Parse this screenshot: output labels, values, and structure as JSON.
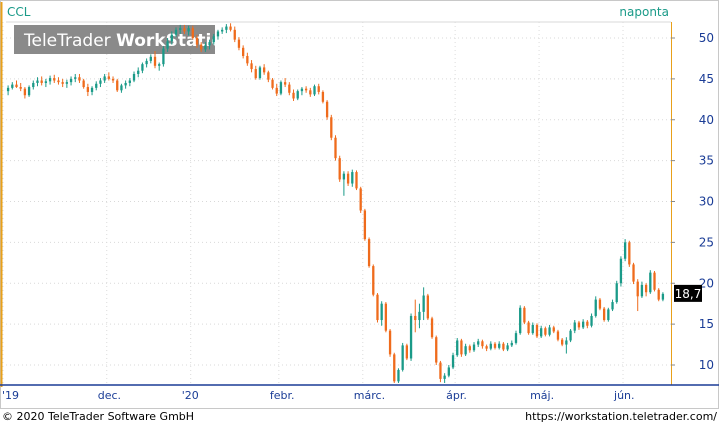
{
  "chart_data": {
    "type": "candlestick",
    "symbol": "CCL",
    "interval_label": "naponta",
    "watermark": {
      "part1": "TeleTrader ",
      "part2": "WorkStation"
    },
    "last_price_label": "18,7",
    "ylim": [
      7,
      53
    ],
    "yticks": [
      10,
      15,
      20,
      25,
      30,
      35,
      40,
      45,
      50
    ],
    "xticks": [
      "'19",
      "dec.",
      "'20",
      "febr.",
      "márc.",
      "ápr.",
      "máj.",
      "jún."
    ],
    "grid": true,
    "colors": {
      "up": "#1a9a88",
      "down": "#ef6b1c",
      "accent": "#e8a01a",
      "axis": "#1a3c96",
      "label_bg": "#000000"
    },
    "footer": {
      "left": "© 2020 TeleTrader Software GmbH",
      "right": "https://workstation.teletrader.com/"
    },
    "candles": [
      [
        43.5,
        44.2,
        43.0,
        43.9
      ],
      [
        43.9,
        44.6,
        43.7,
        44.3
      ],
      [
        44.3,
        44.8,
        43.9,
        44.0
      ],
      [
        44.0,
        44.5,
        43.5,
        43.8
      ],
      [
        43.8,
        44.0,
        42.6,
        43.0
      ],
      [
        43.0,
        44.2,
        42.8,
        44.0
      ],
      [
        44.0,
        44.8,
        43.7,
        44.5
      ],
      [
        44.5,
        45.2,
        44.1,
        44.8
      ],
      [
        44.8,
        45.3,
        44.2,
        44.5
      ],
      [
        44.5,
        45.0,
        44.0,
        44.7
      ],
      [
        44.7,
        45.4,
        44.3,
        45.1
      ],
      [
        45.1,
        45.5,
        44.5,
        44.8
      ],
      [
        44.8,
        45.2,
        44.3,
        44.6
      ],
      [
        44.6,
        45.0,
        44.0,
        44.4
      ],
      [
        44.4,
        44.9,
        43.9,
        44.6
      ],
      [
        44.6,
        45.3,
        44.2,
        45.0
      ],
      [
        45.0,
        45.6,
        44.6,
        45.2
      ],
      [
        45.2,
        45.6,
        44.5,
        44.8
      ],
      [
        44.8,
        45.0,
        43.8,
        44.0
      ],
      [
        44.0,
        44.4,
        42.9,
        43.4
      ],
      [
        43.4,
        44.1,
        43.0,
        43.9
      ],
      [
        43.9,
        44.7,
        43.6,
        44.4
      ],
      [
        44.4,
        45.1,
        44.0,
        44.8
      ],
      [
        44.8,
        45.6,
        44.5,
        45.3
      ],
      [
        45.3,
        45.8,
        44.8,
        45.0
      ],
      [
        45.0,
        45.3,
        44.5,
        44.8
      ],
      [
        44.8,
        45.0,
        43.4,
        43.6
      ],
      [
        43.6,
        44.4,
        43.3,
        44.2
      ],
      [
        44.2,
        44.8,
        43.8,
        44.5
      ],
      [
        44.5,
        45.1,
        44.1,
        44.8
      ],
      [
        44.8,
        45.9,
        44.6,
        45.6
      ],
      [
        45.6,
        46.4,
        45.2,
        46.0
      ],
      [
        46.0,
        47.0,
        45.7,
        46.8
      ],
      [
        46.8,
        47.5,
        46.4,
        47.2
      ],
      [
        47.2,
        48.0,
        46.9,
        47.7
      ],
      [
        47.7,
        48.4,
        46.3,
        46.6
      ],
      [
        46.6,
        47.0,
        46.0,
        46.8
      ],
      [
        46.8,
        49.0,
        46.5,
        48.7
      ],
      [
        48.7,
        50.0,
        48.3,
        49.6
      ],
      [
        49.6,
        50.8,
        49.2,
        50.4
      ],
      [
        50.4,
        51.3,
        50.1,
        51.0
      ],
      [
        51.0,
        51.6,
        50.5,
        51.2
      ],
      [
        51.2,
        51.6,
        50.5,
        50.8
      ],
      [
        50.8,
        51.5,
        50.3,
        51.2
      ],
      [
        51.2,
        51.5,
        49.8,
        50.0
      ],
      [
        50.0,
        50.4,
        48.8,
        49.2
      ],
      [
        49.2,
        49.5,
        48.3,
        48.6
      ],
      [
        48.6,
        49.5,
        48.3,
        49.1
      ],
      [
        49.1,
        49.8,
        48.6,
        49.5
      ],
      [
        49.5,
        50.5,
        49.2,
        50.2
      ],
      [
        50.2,
        51.0,
        49.8,
        50.8
      ],
      [
        50.8,
        51.3,
        50.5,
        51.0
      ],
      [
        51.0,
        51.7,
        50.6,
        51.4
      ],
      [
        51.4,
        51.8,
        50.8,
        51.0
      ],
      [
        51.0,
        51.4,
        49.5,
        49.8
      ],
      [
        49.8,
        50.1,
        48.5,
        48.8
      ],
      [
        48.8,
        49.1,
        47.5,
        47.8
      ],
      [
        47.8,
        48.2,
        46.6,
        46.9
      ],
      [
        46.9,
        47.3,
        45.8,
        46.2
      ],
      [
        46.2,
        46.6,
        44.9,
        45.1
      ],
      [
        45.1,
        46.6,
        44.9,
        46.4
      ],
      [
        46.4,
        46.8,
        45.5,
        45.8
      ],
      [
        45.8,
        46.0,
        44.6,
        44.9
      ],
      [
        44.9,
        45.1,
        43.7,
        43.9
      ],
      [
        43.9,
        44.4,
        42.9,
        43.2
      ],
      [
        43.2,
        44.8,
        43.0,
        44.6
      ],
      [
        44.6,
        45.1,
        44.0,
        44.3
      ],
      [
        44.3,
        44.6,
        43.0,
        43.3
      ],
      [
        43.3,
        43.7,
        42.3,
        42.6
      ],
      [
        42.6,
        43.7,
        42.4,
        43.5
      ],
      [
        43.5,
        44.0,
        43.0,
        43.8
      ],
      [
        43.8,
        44.1,
        43.3,
        43.6
      ],
      [
        43.6,
        43.9,
        42.8,
        43.1
      ],
      [
        43.1,
        44.3,
        42.9,
        44.1
      ],
      [
        44.1,
        44.4,
        43.1,
        43.4
      ],
      [
        43.4,
        43.6,
        42.0,
        42.2
      ],
      [
        42.2,
        42.4,
        40.0,
        40.3
      ],
      [
        40.3,
        40.6,
        37.5,
        37.8
      ],
      [
        37.8,
        38.1,
        35.0,
        35.3
      ],
      [
        35.3,
        35.6,
        32.4,
        32.7
      ],
      [
        32.7,
        33.7,
        30.7,
        33.4
      ],
      [
        33.4,
        33.7,
        31.9,
        32.2
      ],
      [
        32.2,
        33.9,
        31.8,
        33.6
      ],
      [
        33.6,
        33.8,
        31.4,
        31.6
      ],
      [
        31.6,
        31.8,
        28.6,
        28.9
      ],
      [
        28.9,
        29.1,
        25.2,
        25.4
      ],
      [
        25.4,
        25.6,
        21.9,
        22.1
      ],
      [
        22.1,
        22.3,
        18.4,
        18.6
      ],
      [
        18.6,
        18.8,
        15.2,
        15.5
      ],
      [
        15.5,
        17.8,
        14.8,
        17.5
      ],
      [
        17.5,
        17.7,
        14.0,
        14.2
      ],
      [
        14.2,
        14.4,
        11.0,
        11.3
      ],
      [
        11.3,
        11.5,
        7.8,
        8.0
      ],
      [
        8.0,
        9.6,
        7.8,
        9.4
      ],
      [
        9.4,
        12.7,
        9.2,
        12.4
      ],
      [
        12.4,
        12.6,
        10.6,
        10.8
      ],
      [
        10.8,
        16.3,
        10.5,
        16.0
      ],
      [
        16.0,
        18.0,
        14.0,
        15.5
      ],
      [
        15.5,
        17.5,
        14.5,
        16.5
      ],
      [
        16.5,
        19.5,
        15.5,
        18.5
      ],
      [
        18.5,
        18.7,
        15.5,
        15.7
      ],
      [
        15.7,
        15.9,
        13.2,
        13.4
      ],
      [
        13.4,
        13.6,
        10.0,
        10.3
      ],
      [
        10.3,
        10.5,
        7.9,
        8.3
      ],
      [
        8.3,
        9.0,
        7.8,
        8.7
      ],
      [
        8.7,
        10.0,
        8.5,
        9.7
      ],
      [
        9.7,
        11.5,
        9.5,
        11.2
      ],
      [
        11.2,
        13.3,
        11.0,
        13.0
      ],
      [
        13.0,
        13.2,
        11.0,
        11.3
      ],
      [
        11.3,
        12.6,
        11.1,
        12.3
      ],
      [
        12.3,
        12.5,
        11.5,
        11.8
      ],
      [
        11.8,
        12.8,
        11.6,
        12.5
      ],
      [
        12.5,
        13.2,
        12.2,
        12.9
      ],
      [
        12.9,
        13.1,
        12.0,
        12.3
      ],
      [
        12.3,
        12.5,
        11.7,
        12.0
      ],
      [
        12.0,
        12.9,
        11.8,
        12.6
      ],
      [
        12.6,
        12.8,
        11.9,
        12.1
      ],
      [
        12.1,
        12.9,
        11.9,
        12.6
      ],
      [
        12.6,
        12.8,
        11.7,
        11.9
      ],
      [
        11.9,
        12.7,
        11.7,
        12.4
      ],
      [
        12.4,
        13.0,
        12.2,
        12.7
      ],
      [
        12.7,
        14.2,
        12.5,
        13.9
      ],
      [
        13.9,
        17.3,
        13.7,
        17.0
      ],
      [
        17.0,
        17.2,
        15.0,
        15.2
      ],
      [
        15.2,
        15.4,
        13.7,
        13.9
      ],
      [
        13.9,
        15.2,
        13.7,
        14.9
      ],
      [
        14.9,
        15.1,
        13.3,
        13.5
      ],
      [
        13.5,
        14.8,
        13.3,
        14.5
      ],
      [
        14.5,
        14.7,
        13.5,
        13.7
      ],
      [
        13.7,
        14.9,
        13.5,
        14.6
      ],
      [
        14.6,
        14.8,
        13.9,
        14.1
      ],
      [
        14.1,
        14.3,
        12.9,
        13.1
      ],
      [
        13.1,
        13.3,
        12.3,
        12.5
      ],
      [
        12.5,
        13.4,
        11.4,
        13.0
      ],
      [
        13.0,
        14.4,
        12.8,
        14.2
      ],
      [
        14.2,
        15.5,
        13.9,
        15.2
      ],
      [
        15.2,
        15.4,
        14.3,
        14.6
      ],
      [
        14.6,
        15.6,
        14.4,
        15.3
      ],
      [
        15.3,
        15.5,
        14.5,
        14.8
      ],
      [
        14.8,
        16.3,
        14.6,
        16.0
      ],
      [
        16.0,
        18.4,
        15.8,
        18.0
      ],
      [
        18.0,
        18.2,
        16.7,
        16.9
      ],
      [
        16.9,
        17.1,
        15.3,
        15.5
      ],
      [
        15.5,
        17.0,
        15.3,
        16.8
      ],
      [
        16.8,
        18.0,
        16.6,
        17.7
      ],
      [
        17.7,
        20.3,
        17.5,
        20.0
      ],
      [
        20.0,
        23.3,
        19.6,
        23.0
      ],
      [
        23.0,
        25.4,
        22.7,
        25.0
      ],
      [
        25.0,
        25.2,
        22.0,
        22.3
      ],
      [
        22.3,
        22.5,
        19.9,
        20.2
      ],
      [
        20.2,
        20.5,
        16.6,
        18.4
      ],
      [
        18.4,
        20.2,
        18.2,
        19.8
      ],
      [
        19.8,
        20.0,
        18.4,
        18.9
      ],
      [
        18.9,
        21.6,
        18.7,
        21.3
      ],
      [
        21.3,
        21.5,
        19.0,
        19.2
      ],
      [
        19.2,
        19.4,
        17.8,
        18.0
      ],
      [
        18.0,
        18.9,
        17.8,
        18.7
      ]
    ]
  }
}
